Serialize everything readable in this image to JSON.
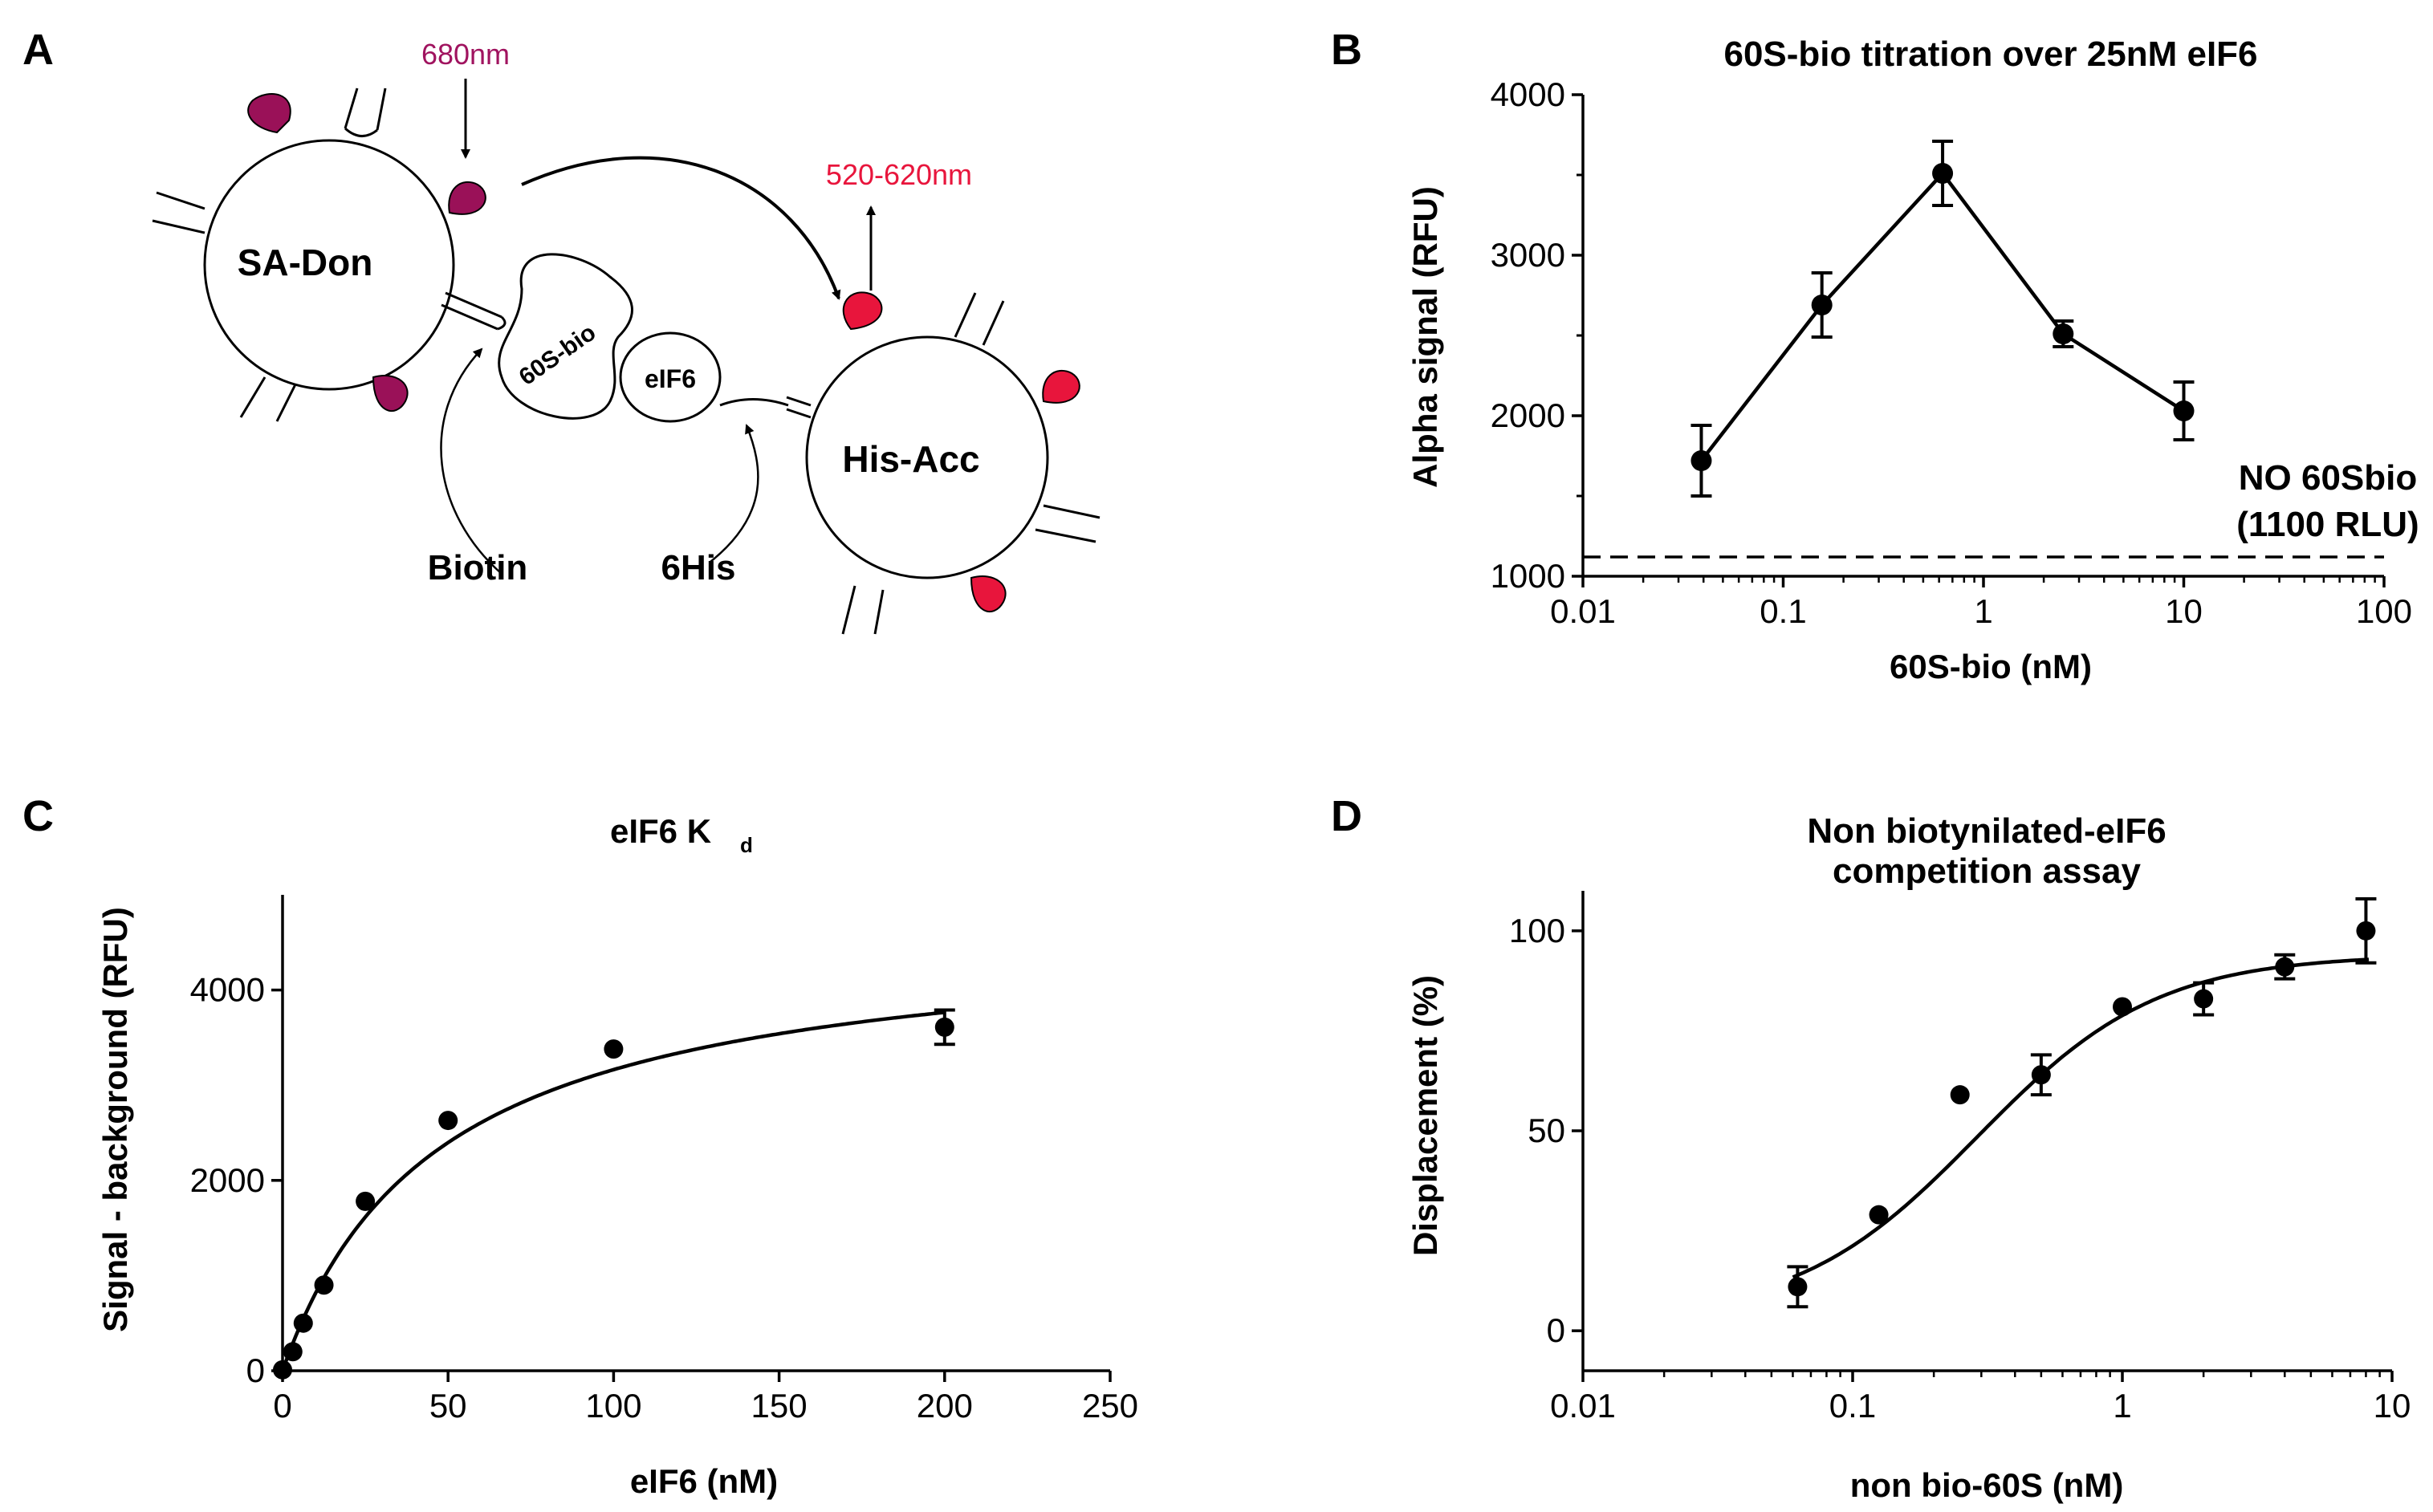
{
  "panels": {
    "A": {
      "letter": "A",
      "donor_label": "SA-Don",
      "acceptor_label": "His-Acc",
      "ribosome_label": "60S-bio",
      "eif6_label": "eIF6",
      "excitation_label": "680nm",
      "emission_label": "520-620nm",
      "biotin_label": "Biotin",
      "his_label": "6His",
      "colors": {
        "donor_drop": "#9a1158",
        "acceptor_drop": "#e8153c",
        "excitation_text": "#a0135f",
        "emission_text": "#e8153c"
      }
    },
    "B": {
      "letter": "B"
    },
    "C": {
      "letter": "C"
    },
    "D": {
      "letter": "D"
    }
  },
  "chart_data": [
    {
      "id": "B",
      "type": "line",
      "title": "60S-bio titration over 25nM eIF6",
      "xlabel": "60S-bio (nM)",
      "ylabel": "Alpha signal (RFU)",
      "xscale": "log",
      "xlim": [
        0.01,
        100
      ],
      "ylim": [
        1000,
        4000
      ],
      "xticks": [
        0.01,
        0.1,
        1,
        10,
        100
      ],
      "xtick_labels": [
        "0.01",
        "0.1",
        "1",
        "10",
        "100"
      ],
      "yticks": [
        1000,
        2000,
        3000,
        4000
      ],
      "ytick_labels": [
        "1000",
        "2000",
        "3000",
        "4000"
      ],
      "x": [
        0.039,
        0.156,
        0.625,
        2.5,
        10
      ],
      "y": [
        1720,
        2690,
        3510,
        2510,
        2030
      ],
      "err": [
        220,
        200,
        200,
        80,
        180
      ],
      "baseline": {
        "value": 1120,
        "label_line1": "NO 60Sbio",
        "label_line2": "(1100 RLU)"
      }
    },
    {
      "id": "C",
      "type": "scatter",
      "title_main": "eIF6 K",
      "title_sub": "d",
      "xlabel": "eIF6 (nM)",
      "ylabel": "Signal - background (RFU)",
      "xlim": [
        0,
        250
      ],
      "ylim": [
        0,
        5000
      ],
      "xticks": [
        0,
        50,
        100,
        150,
        200,
        250
      ],
      "xtick_labels": [
        "0",
        "50",
        "100",
        "150",
        "200",
        "250"
      ],
      "yticks": [
        0,
        2000,
        4000
      ],
      "ytick_labels": [
        "0",
        "2000",
        "4000"
      ],
      "x": [
        0,
        3.1,
        6.25,
        12.5,
        25,
        50,
        100,
        200
      ],
      "y": [
        10,
        200,
        500,
        900,
        1780,
        2630,
        3380,
        3610
      ],
      "err": [
        0,
        0,
        0,
        0,
        0,
        0,
        0,
        180
      ],
      "fit": {
        "model": "one-site binding",
        "Bmax": 4650,
        "Kd": 47
      }
    },
    {
      "id": "D",
      "type": "scatter",
      "title_line1": "Non biotynilated-eIF6",
      "title_line2": "competition assay",
      "xlabel": "non bio-60S (nM)",
      "ylabel": "Displacement (%)",
      "xscale": "log",
      "xlim": [
        0.01,
        10
      ],
      "ylim": [
        -10,
        110
      ],
      "xticks": [
        0.01,
        0.1,
        1,
        10
      ],
      "xtick_labels": [
        "0.01",
        "0.1",
        "1",
        "10"
      ],
      "yticks": [
        0,
        50,
        100
      ],
      "ytick_labels": [
        "0",
        "50",
        "100"
      ],
      "x": [
        0.0625,
        0.125,
        0.25,
        0.5,
        1,
        2,
        4,
        8
      ],
      "y": [
        11,
        29,
        59,
        64,
        81,
        83,
        91,
        100
      ],
      "err": [
        5,
        0,
        0,
        5,
        0,
        4,
        3,
        8
      ],
      "fit": {
        "model": "sigmoidal",
        "bottom": 3,
        "top": 94,
        "ec50": 0.29,
        "hill": 1.3
      }
    }
  ]
}
